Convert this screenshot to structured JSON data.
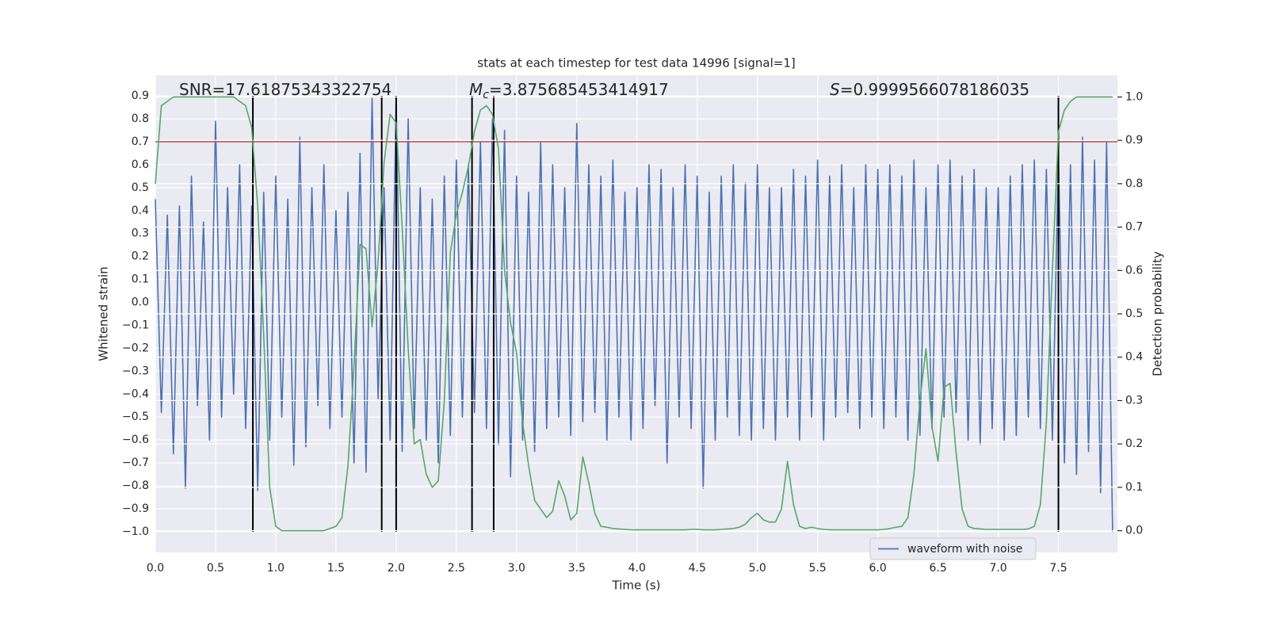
{
  "chart_data": {
    "type": "line",
    "title": "stats at each timestep for test data 14996 [signal=1]",
    "xlabel": "Time (s)",
    "ylabel": "Whitened strain",
    "y2label": "Detection probability",
    "annotations": [
      {
        "text": "SNR=17.61875343322754"
      },
      {
        "symbol": "M",
        "subscript": "c",
        "text": "=3.875685453414917"
      },
      {
        "symbol": "S",
        "text": "=0.9999566078186035"
      }
    ],
    "xlim": [
      0,
      7.99
    ],
    "ylim": [
      -1.09,
      0.99
    ],
    "y2lim": [
      -0.05,
      1.05
    ],
    "grid": true,
    "legend": "lower right",
    "xticks": [
      {
        "value": 0,
        "label": "0.0"
      },
      {
        "value": 0.5,
        "label": "0.5"
      },
      {
        "value": 1,
        "label": "1.0"
      },
      {
        "value": 1.5,
        "label": "1.5"
      },
      {
        "value": 2,
        "label": "2.0"
      },
      {
        "value": 2.5,
        "label": "2.5"
      },
      {
        "value": 3,
        "label": "3.0"
      },
      {
        "value": 3.5,
        "label": "3.5"
      },
      {
        "value": 4,
        "label": "4.0"
      },
      {
        "value": 4.5,
        "label": "4.5"
      },
      {
        "value": 5,
        "label": "5.0"
      },
      {
        "value": 5.5,
        "label": "5.5"
      },
      {
        "value": 6,
        "label": "6.0"
      },
      {
        "value": 6.5,
        "label": "6.5"
      },
      {
        "value": 7,
        "label": "7.0"
      },
      {
        "value": 7.5,
        "label": "7.5"
      }
    ],
    "yticks": [
      {
        "value": 0.9,
        "label": "0.9"
      },
      {
        "value": 0.8,
        "label": "0.8"
      },
      {
        "value": 0.7,
        "label": "0.7"
      },
      {
        "value": 0.6,
        "label": "0.6"
      },
      {
        "value": 0.5,
        "label": "0.5"
      },
      {
        "value": 0.4,
        "label": "0.4"
      },
      {
        "value": 0.3,
        "label": "0.3"
      },
      {
        "value": 0.2,
        "label": "0.2"
      },
      {
        "value": 0.1,
        "label": "0.1"
      },
      {
        "value": 0,
        "label": "0.0"
      },
      {
        "value": -0.1,
        "label": "−0.1"
      },
      {
        "value": -0.2,
        "label": "−0.2"
      },
      {
        "value": -0.3,
        "label": "−0.3"
      },
      {
        "value": -0.4,
        "label": "−0.4"
      },
      {
        "value": -0.5,
        "label": "−0.5"
      },
      {
        "value": -0.6,
        "label": "−0.6"
      },
      {
        "value": -0.7,
        "label": "−0.7"
      },
      {
        "value": -0.8,
        "label": "−0.8"
      },
      {
        "value": -0.9,
        "label": "−0.9"
      },
      {
        "value": -1,
        "label": "−1.0"
      }
    ],
    "y2ticks": [
      {
        "value": 1,
        "label": "1.0"
      },
      {
        "value": 0.9,
        "label": "0.9"
      },
      {
        "value": 0.8,
        "label": "0.8"
      },
      {
        "value": 0.7,
        "label": "0.7"
      },
      {
        "value": 0.6,
        "label": "0.6"
      },
      {
        "value": 0.5,
        "label": "0.5"
      },
      {
        "value": 0.4,
        "label": "0.4"
      },
      {
        "value": 0.3,
        "label": "0.3"
      },
      {
        "value": 0.2,
        "label": "0.2"
      },
      {
        "value": 0.1,
        "label": "0.1"
      },
      {
        "value": 0,
        "label": "0.0"
      }
    ],
    "hline": {
      "value": 0.7,
      "color": "#c44e52"
    },
    "vlines": {
      "x": [
        0.81,
        1.88,
        2.0,
        2.63,
        2.81,
        7.5
      ],
      "span": [
        -1.0,
        0.9
      ],
      "color": "#000000"
    },
    "x": [
      0,
      0.05,
      0.1,
      0.15,
      0.2,
      0.25,
      0.3,
      0.35,
      0.4,
      0.45,
      0.5,
      0.55,
      0.6,
      0.65,
      0.7,
      0.75,
      0.8,
      0.85,
      0.9,
      0.95,
      1,
      1.05,
      1.1,
      1.15,
      1.2,
      1.25,
      1.3,
      1.35,
      1.4,
      1.45,
      1.5,
      1.55,
      1.6,
      1.65,
      1.7,
      1.75,
      1.8,
      1.85,
      1.9,
      1.95,
      2,
      2.05,
      2.1,
      2.15,
      2.2,
      2.25,
      2.3,
      2.35,
      2.4,
      2.45,
      2.5,
      2.55,
      2.6,
      2.65,
      2.7,
      2.75,
      2.8,
      2.85,
      2.9,
      2.95,
      3,
      3.05,
      3.1,
      3.15,
      3.2,
      3.25,
      3.3,
      3.35,
      3.4,
      3.45,
      3.5,
      3.55,
      3.6,
      3.65,
      3.7,
      3.75,
      3.8,
      3.85,
      3.9,
      3.95,
      4,
      4.05,
      4.1,
      4.15,
      4.2,
      4.25,
      4.3,
      4.35,
      4.4,
      4.45,
      4.5,
      4.55,
      4.6,
      4.65,
      4.7,
      4.75,
      4.8,
      4.85,
      4.9,
      4.95,
      5,
      5.05,
      5.1,
      5.15,
      5.2,
      5.25,
      5.3,
      5.35,
      5.4,
      5.45,
      5.5,
      5.55,
      5.6,
      5.65,
      5.7,
      5.75,
      5.8,
      5.85,
      5.9,
      5.95,
      6,
      6.05,
      6.1,
      6.15,
      6.2,
      6.25,
      6.3,
      6.35,
      6.4,
      6.45,
      6.5,
      6.55,
      6.6,
      6.65,
      6.7,
      6.75,
      6.8,
      6.85,
      6.9,
      6.95,
      7,
      7.05,
      7.1,
      7.15,
      7.2,
      7.25,
      7.3,
      7.35,
      7.4,
      7.45,
      7.5,
      7.55,
      7.6,
      7.65,
      7.7,
      7.75,
      7.8,
      7.85,
      7.9,
      7.95
    ],
    "series": [
      {
        "name": "waveform with noise",
        "color": "#4c72b0",
        "values": [
          0.45,
          -0.48,
          0.38,
          -0.66,
          0.42,
          -0.81,
          0.55,
          -0.45,
          0.35,
          -0.6,
          0.79,
          -0.5,
          0.5,
          -0.4,
          0.6,
          -0.55,
          0.42,
          -0.82,
          0.48,
          -0.6,
          0.55,
          -0.5,
          0.45,
          -0.71,
          0.72,
          -0.63,
          0.5,
          -0.45,
          0.6,
          -0.55,
          0.4,
          -0.5,
          0.48,
          -0.7,
          0.65,
          -0.74,
          0.89,
          -0.42,
          0.5,
          -0.6,
          0.88,
          -0.65,
          0.8,
          -0.55,
          0.5,
          -0.6,
          0.45,
          -0.7,
          0.55,
          -0.58,
          0.62,
          -0.5,
          0.6,
          -0.48,
          0.7,
          -0.55,
          0.8,
          -0.62,
          0.75,
          -0.76,
          0.55,
          -0.6,
          0.48,
          -0.65,
          0.7,
          -0.55,
          0.6,
          -0.5,
          0.5,
          -0.58,
          0.78,
          -0.52,
          0.6,
          -0.48,
          0.55,
          -0.6,
          0.62,
          -0.5,
          0.48,
          -0.6,
          0.5,
          -0.55,
          0.6,
          -0.45,
          0.58,
          -0.7,
          0.5,
          -0.5,
          0.6,
          -0.55,
          0.55,
          -0.81,
          0.48,
          -0.6,
          0.55,
          -0.5,
          0.6,
          -0.58,
          0.52,
          -0.6,
          0.6,
          -0.55,
          0.5,
          -0.6,
          0.5,
          -0.5,
          0.58,
          -0.6,
          0.55,
          -0.5,
          0.62,
          -0.6,
          0.55,
          -0.5,
          0.6,
          -0.48,
          0.5,
          -0.55,
          0.6,
          -0.5,
          0.58,
          -0.55,
          0.6,
          -0.5,
          0.55,
          -0.6,
          0.62,
          -0.58,
          0.5,
          -0.55,
          0.6,
          -0.5,
          0.62,
          -0.48,
          0.55,
          -0.6,
          0.58,
          -0.62,
          0.5,
          -0.55,
          0.5,
          -0.6,
          0.55,
          -0.58,
          0.6,
          -0.5,
          0.62,
          -0.55,
          0.58,
          -0.6,
          0.65,
          -0.7,
          0.6,
          -0.75,
          0.72,
          -0.65,
          0.62,
          -0.83,
          0.7,
          -1.0
        ]
      },
      {
        "color": "#55a868",
        "axis": "y2",
        "values": [
          0.8,
          0.98,
          0.99,
          1,
          1,
          1,
          1,
          1,
          1,
          1,
          1,
          1,
          1,
          1,
          0.99,
          0.98,
          0.93,
          0.75,
          0.45,
          0.1,
          0.01,
          0,
          0,
          0,
          0,
          0,
          0,
          0,
          0,
          0.005,
          0.01,
          0.03,
          0.15,
          0.38,
          0.66,
          0.65,
          0.47,
          0.62,
          0.85,
          0.96,
          0.94,
          0.7,
          0.42,
          0.2,
          0.21,
          0.13,
          0.1,
          0.115,
          0.3,
          0.64,
          0.73,
          0.78,
          0.84,
          0.92,
          0.97,
          0.98,
          0.96,
          0.88,
          0.6,
          0.48,
          0.41,
          0.25,
          0.15,
          0.07,
          0.05,
          0.03,
          0.045,
          0.115,
          0.08,
          0.025,
          0.04,
          0.17,
          0.11,
          0.04,
          0.01,
          0.008,
          0.005,
          0.004,
          0.003,
          0.002,
          0.002,
          0.002,
          0.002,
          0.002,
          0.002,
          0.002,
          0.002,
          0.002,
          0.002,
          0.003,
          0.003,
          0.002,
          0.002,
          0.002,
          0.003,
          0.004,
          0.005,
          0.008,
          0.015,
          0.03,
          0.04,
          0.025,
          0.02,
          0.02,
          0.05,
          0.16,
          0.06,
          0.01,
          0.005,
          0.008,
          0.005,
          0.003,
          0.002,
          0.002,
          0.002,
          0.002,
          0.002,
          0.002,
          0.002,
          0.002,
          0.002,
          0.003,
          0.005,
          0.008,
          0.01,
          0.03,
          0.13,
          0.3,
          0.42,
          0.24,
          0.16,
          0.33,
          0.34,
          0.18,
          0.05,
          0.01,
          0.005,
          0.004,
          0.003,
          0.003,
          0.003,
          0.003,
          0.003,
          0.003,
          0.003,
          0.004,
          0.01,
          0.06,
          0.25,
          0.6,
          0.92,
          0.97,
          0.99,
          1,
          1,
          1,
          1,
          1,
          1,
          1
        ]
      }
    ]
  }
}
